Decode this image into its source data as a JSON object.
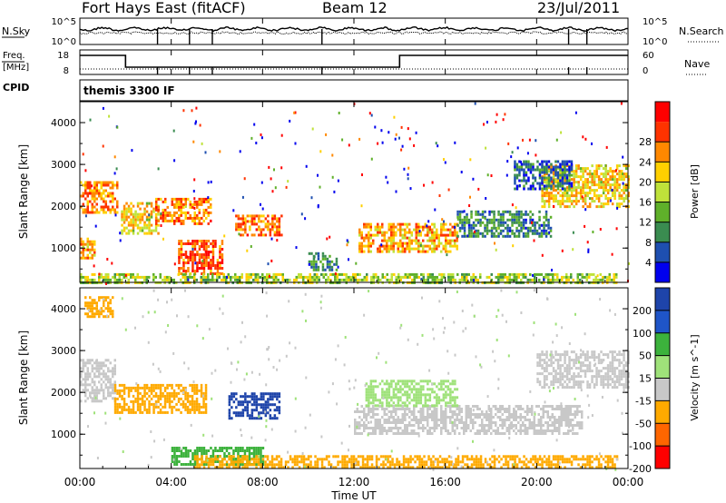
{
  "header": {
    "station": "Fort Hays East (fitACF)",
    "beam": "Beam 12",
    "date": "23/Jul/2011"
  },
  "noise_panel": {
    "left_label": "N.Sky",
    "right_label": "N.Search",
    "left_ticks": [
      "10^5",
      "10^0"
    ],
    "right_ticks": [
      "10^5",
      "10^0"
    ]
  },
  "freq_panel": {
    "left_label_1": "Freq.",
    "left_label_2": "[MHz]",
    "left_ticks": [
      "18",
      "8"
    ],
    "right_label": "Nave",
    "right_ticks": [
      "60",
      "0"
    ],
    "cpid_label": "CPID",
    "cpid_text": "themis 3300 IF"
  },
  "x_axis": {
    "label": "Time UT",
    "ticks": [
      "00:00",
      "04:00",
      "08:00",
      "12:00",
      "16:00",
      "20:00",
      "00:00"
    ]
  },
  "colors": {
    "power_scale": [
      "#0000ee",
      "#1e4fb0",
      "#3a8c50",
      "#5fb02a",
      "#bfe23a",
      "#ffd000",
      "#ff8800",
      "#ff3300",
      "#ff0000"
    ],
    "velocity_scale": [
      "#ff0000",
      "#ff6600",
      "#ffaa00",
      "#c8c8c8",
      "#9fe27a",
      "#3cb23c",
      "#1f55c8",
      "#1e44aa"
    ]
  },
  "chart_data": [
    {
      "type": "heatmap",
      "title": "",
      "xlabel": "Time UT",
      "ylabel": "Slant Range [km]",
      "xlim": [
        0,
        24
      ],
      "ylim": [
        180,
        4500
      ],
      "yticks": [
        "1000",
        "2000",
        "3000",
        "4000"
      ],
      "colorbar": {
        "label": "Power [dB]",
        "ticks": [
          "4",
          "8",
          "12",
          "16",
          "20",
          "24",
          "28"
        ],
        "range": [
          0,
          30
        ]
      },
      "regions": [
        {
          "t0": 0.0,
          "t1": 1.6,
          "r0": 1850,
          "r1": 2600,
          "value": 22
        },
        {
          "t0": 0.0,
          "t1": 0.6,
          "r0": 750,
          "r1": 1250,
          "value": 20
        },
        {
          "t0": 1.8,
          "t1": 3.4,
          "r0": 1350,
          "r1": 2100,
          "value": 18
        },
        {
          "t0": 3.3,
          "t1": 5.7,
          "r0": 1600,
          "r1": 2200,
          "value": 22
        },
        {
          "t0": 4.3,
          "t1": 6.2,
          "r0": 400,
          "r1": 1200,
          "value": 24
        },
        {
          "t0": 6.8,
          "t1": 8.8,
          "r0": 1300,
          "r1": 1800,
          "value": 22
        },
        {
          "t0": 10.0,
          "t1": 11.2,
          "r0": 500,
          "r1": 900,
          "value": 8
        },
        {
          "t0": 12.2,
          "t1": 16.5,
          "r0": 900,
          "r1": 1600,
          "value": 20
        },
        {
          "t0": 16.5,
          "t1": 20.6,
          "r0": 1250,
          "r1": 1900,
          "value": 8
        },
        {
          "t0": 20.2,
          "t1": 24.0,
          "r0": 2000,
          "r1": 3000,
          "value": 18
        },
        {
          "t0": 19.0,
          "t1": 21.5,
          "r0": 2400,
          "r1": 3100,
          "value": 6
        },
        {
          "t0": 0.0,
          "t1": 23.5,
          "r0": 200,
          "r1": 400,
          "value": 14
        }
      ]
    },
    {
      "type": "heatmap",
      "title": "",
      "xlabel": "Time UT",
      "ylabel": "Slant Range [km]",
      "xlim": [
        0,
        24
      ],
      "ylim": [
        180,
        4500
      ],
      "yticks": [
        "1000",
        "2000",
        "3000",
        "4000"
      ],
      "colorbar": {
        "label": "Velocity [m s^-1]",
        "ticks": [
          "200",
          "100",
          "50",
          "15",
          "-15",
          "-50",
          "-100",
          "-200"
        ],
        "range": [
          -250,
          250
        ]
      },
      "regions": [
        {
          "t0": 0.0,
          "t1": 1.5,
          "r0": 1800,
          "r1": 2800,
          "value": 0
        },
        {
          "t0": 0.2,
          "t1": 1.4,
          "r0": 3800,
          "r1": 4300,
          "value": -40
        },
        {
          "t0": 1.5,
          "t1": 5.5,
          "r0": 1500,
          "r1": 2200,
          "value": -50
        },
        {
          "t0": 6.5,
          "t1": 8.7,
          "r0": 1400,
          "r1": 2000,
          "value": 200
        },
        {
          "t0": 4.0,
          "t1": 8.0,
          "r0": 250,
          "r1": 700,
          "value": 60
        },
        {
          "t0": 5.0,
          "t1": 23.5,
          "r0": 200,
          "r1": 500,
          "value": -60
        },
        {
          "t0": 12.0,
          "t1": 22.0,
          "r0": 1000,
          "r1": 1700,
          "value": 0
        },
        {
          "t0": 20.0,
          "t1": 24.0,
          "r0": 2100,
          "r1": 3000,
          "value": 0
        },
        {
          "t0": 12.5,
          "t1": 16.5,
          "r0": 1700,
          "r1": 2300,
          "value": 20
        }
      ]
    }
  ]
}
